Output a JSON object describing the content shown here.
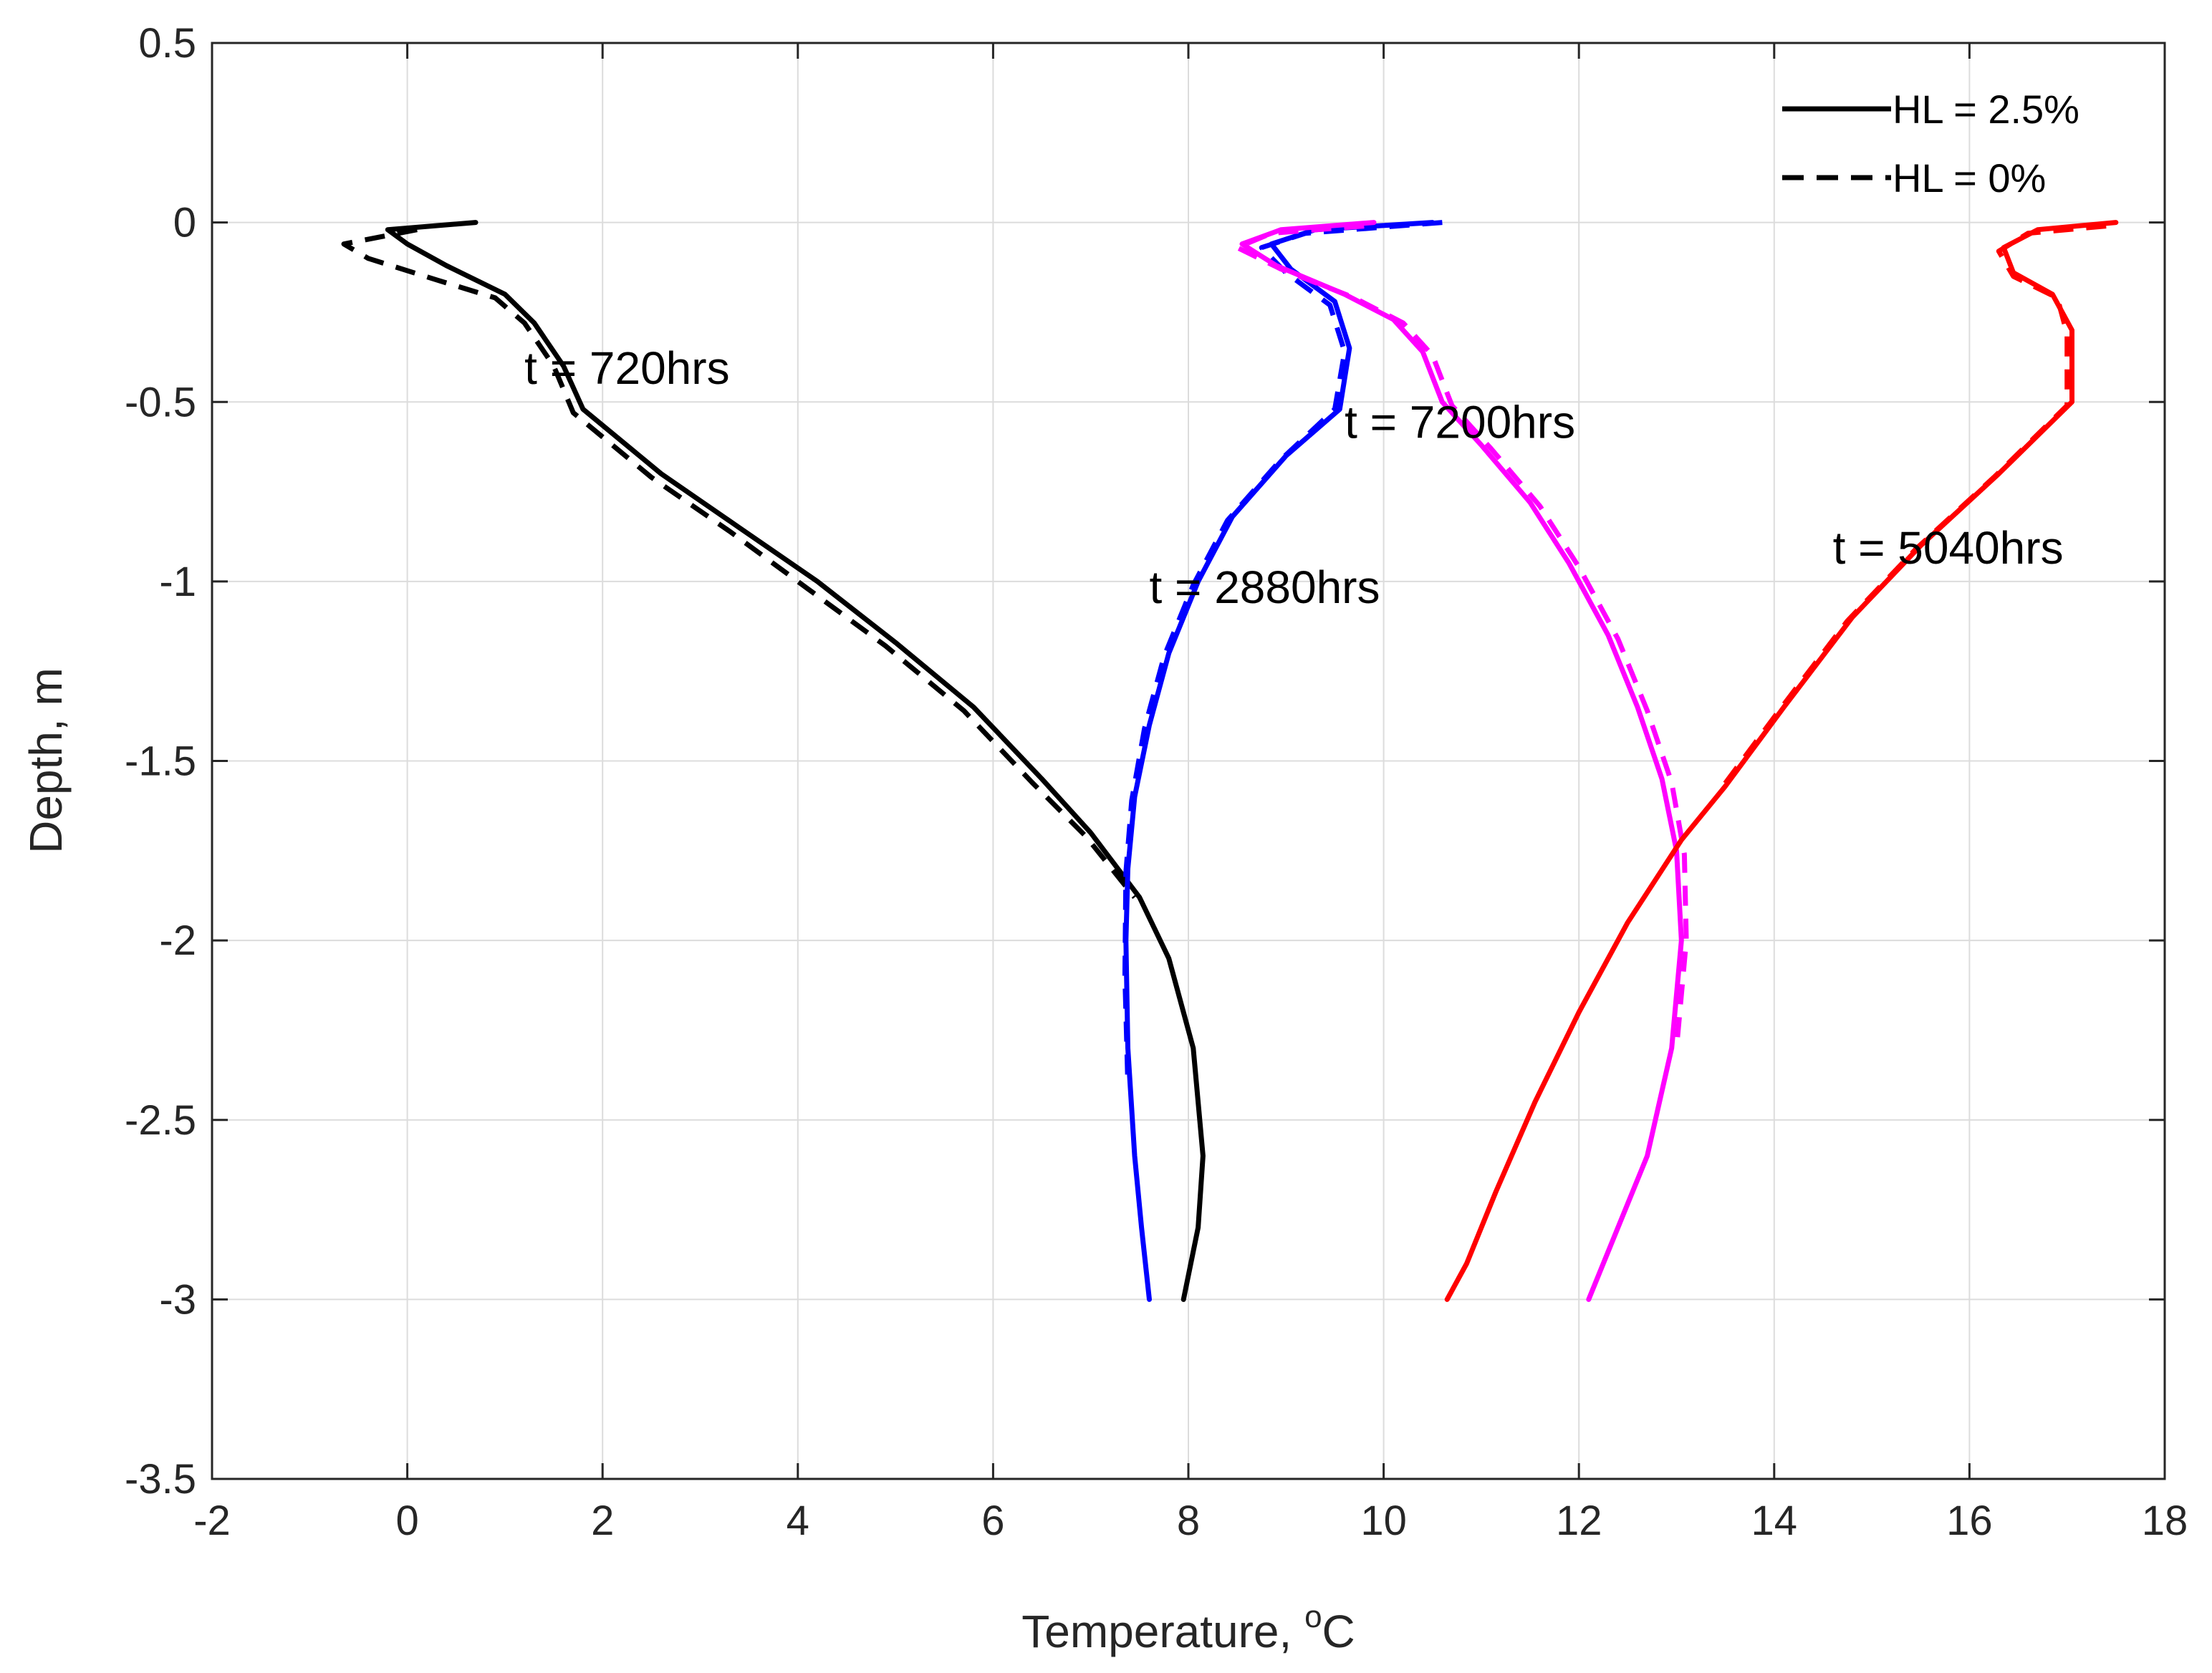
{
  "chart_data": {
    "type": "line",
    "xlabel": "Temperature, ",
    "xlabel_sup": "o",
    "xlabel_suffix": "C",
    "ylabel": "Depth, m",
    "xlim": [
      -2,
      18
    ],
    "ylim": [
      -3.5,
      0.5
    ],
    "grid": true,
    "xticks": [
      -2,
      0,
      2,
      4,
      6,
      8,
      10,
      12,
      14,
      16,
      18
    ],
    "yticks": [
      0.5,
      0,
      -0.5,
      -1,
      -1.5,
      -2,
      -2.5,
      -3,
      -3.5
    ],
    "legend": {
      "position": "top-right",
      "entries": [
        {
          "label": "HL = 2.5%",
          "style": "solid"
        },
        {
          "label": "HL = 0%",
          "style": "dashed"
        }
      ]
    },
    "annotations": [
      {
        "text": "t = 720hrs",
        "x": 1.2,
        "y": -0.45
      },
      {
        "text": "t = 2880hrs",
        "x": 7.6,
        "y": -1.06
      },
      {
        "text": "t = 7200hrs",
        "x": 9.6,
        "y": -0.6
      },
      {
        "text": "t = 5040hrs",
        "x": 14.6,
        "y": -0.95
      }
    ],
    "series": [
      {
        "name": "t = 720hrs, HL = 2.5%",
        "color": "#000000",
        "style": "solid",
        "points": [
          [
            0.7,
            0
          ],
          [
            -0.2,
            -0.02
          ],
          [
            0.0,
            -0.06
          ],
          [
            0.4,
            -0.12
          ],
          [
            1.0,
            -0.2
          ],
          [
            1.3,
            -0.28
          ],
          [
            1.6,
            -0.4
          ],
          [
            1.8,
            -0.52
          ],
          [
            2.6,
            -0.7
          ],
          [
            3.4,
            -0.85
          ],
          [
            4.2,
            -1.0
          ],
          [
            5.0,
            -1.17
          ],
          [
            5.8,
            -1.35
          ],
          [
            6.5,
            -1.55
          ],
          [
            7.0,
            -1.7
          ],
          [
            7.5,
            -1.88
          ],
          [
            7.8,
            -2.05
          ],
          [
            8.05,
            -2.3
          ],
          [
            8.15,
            -2.6
          ],
          [
            8.1,
            -2.8
          ],
          [
            7.95,
            -3.0
          ]
        ]
      },
      {
        "name": "t = 720hrs, HL = 0%",
        "color": "#000000",
        "style": "dashed",
        "points": [
          [
            0.1,
            -0.02
          ],
          [
            -0.65,
            -0.06
          ],
          [
            -0.4,
            -0.1
          ],
          [
            0.3,
            -0.16
          ],
          [
            0.9,
            -0.21
          ],
          [
            1.2,
            -0.28
          ],
          [
            1.5,
            -0.4
          ],
          [
            1.7,
            -0.53
          ],
          [
            2.5,
            -0.71
          ],
          [
            3.3,
            -0.86
          ],
          [
            4.1,
            -1.02
          ],
          [
            4.9,
            -1.18
          ],
          [
            5.7,
            -1.36
          ],
          [
            6.4,
            -1.56
          ],
          [
            6.95,
            -1.71
          ],
          [
            7.45,
            -1.88
          ]
        ]
      },
      {
        "name": "t = 2880hrs, HL = 2.5%",
        "color": "#0000ff",
        "style": "solid",
        "points": [
          [
            10.5,
            0
          ],
          [
            9.3,
            -0.02
          ],
          [
            8.85,
            -0.06
          ],
          [
            9.05,
            -0.13
          ],
          [
            9.5,
            -0.22
          ],
          [
            9.65,
            -0.35
          ],
          [
            9.55,
            -0.52
          ],
          [
            9.0,
            -0.65
          ],
          [
            8.45,
            -0.82
          ],
          [
            8.1,
            -1.0
          ],
          [
            7.8,
            -1.2
          ],
          [
            7.6,
            -1.4
          ],
          [
            7.45,
            -1.6
          ],
          [
            7.38,
            -1.8
          ],
          [
            7.36,
            -2.0
          ],
          [
            7.38,
            -2.3
          ],
          [
            7.45,
            -2.6
          ],
          [
            7.52,
            -2.8
          ],
          [
            7.6,
            -3.0
          ]
        ]
      },
      {
        "name": "t = 2880hrs, HL = 0%",
        "color": "#0000ff",
        "style": "dashed",
        "points": [
          [
            10.6,
            0
          ],
          [
            9.2,
            -0.03
          ],
          [
            8.75,
            -0.07
          ],
          [
            9.0,
            -0.14
          ],
          [
            9.45,
            -0.23
          ],
          [
            9.6,
            -0.36
          ],
          [
            9.5,
            -0.52
          ],
          [
            8.95,
            -0.66
          ],
          [
            8.4,
            -0.83
          ],
          [
            8.05,
            -1.01
          ],
          [
            7.75,
            -1.21
          ],
          [
            7.55,
            -1.41
          ],
          [
            7.42,
            -1.61
          ],
          [
            7.36,
            -1.81
          ],
          [
            7.35,
            -2.1
          ],
          [
            7.38,
            -2.4
          ]
        ]
      },
      {
        "name": "t = 7200hrs, HL = 2.5%",
        "color": "#ff00ff",
        "style": "solid",
        "points": [
          [
            9.9,
            0
          ],
          [
            8.95,
            -0.02
          ],
          [
            8.55,
            -0.06
          ],
          [
            8.9,
            -0.12
          ],
          [
            9.6,
            -0.2
          ],
          [
            10.1,
            -0.27
          ],
          [
            10.4,
            -0.36
          ],
          [
            10.6,
            -0.5
          ],
          [
            11.0,
            -0.62
          ],
          [
            11.5,
            -0.78
          ],
          [
            11.9,
            -0.95
          ],
          [
            12.3,
            -1.15
          ],
          [
            12.6,
            -1.35
          ],
          [
            12.85,
            -1.55
          ],
          [
            13.0,
            -1.75
          ],
          [
            13.05,
            -2.0
          ],
          [
            12.95,
            -2.3
          ],
          [
            12.7,
            -2.6
          ],
          [
            12.4,
            -2.8
          ],
          [
            12.1,
            -3.0
          ]
        ]
      },
      {
        "name": "t = 7200hrs, HL = 0%",
        "color": "#ff00ff",
        "style": "dashed",
        "points": [
          [
            9.8,
            -0.01
          ],
          [
            8.85,
            -0.03
          ],
          [
            8.5,
            -0.07
          ],
          [
            8.95,
            -0.13
          ],
          [
            9.7,
            -0.21
          ],
          [
            10.2,
            -0.28
          ],
          [
            10.5,
            -0.37
          ],
          [
            10.7,
            -0.51
          ],
          [
            11.1,
            -0.63
          ],
          [
            11.6,
            -0.79
          ],
          [
            12.0,
            -0.96
          ],
          [
            12.4,
            -1.16
          ],
          [
            12.7,
            -1.36
          ],
          [
            12.95,
            -1.56
          ],
          [
            13.08,
            -1.76
          ],
          [
            13.1,
            -2.0
          ],
          [
            13.0,
            -2.3
          ]
        ]
      },
      {
        "name": "t = 5040hrs, HL = 2.5%",
        "color": "#ff0000",
        "style": "solid",
        "points": [
          [
            17.5,
            0
          ],
          [
            16.7,
            -0.02
          ],
          [
            16.35,
            -0.07
          ],
          [
            16.45,
            -0.14
          ],
          [
            16.85,
            -0.2
          ],
          [
            17.05,
            -0.3
          ],
          [
            17.05,
            -0.5
          ],
          [
            16.3,
            -0.7
          ],
          [
            15.5,
            -0.9
          ],
          [
            14.8,
            -1.1
          ],
          [
            14.1,
            -1.35
          ],
          [
            13.5,
            -1.57
          ],
          [
            13.05,
            -1.72
          ],
          [
            12.5,
            -1.95
          ],
          [
            12.0,
            -2.2
          ],
          [
            11.55,
            -2.45
          ],
          [
            11.15,
            -2.7
          ],
          [
            10.85,
            -2.9
          ],
          [
            10.65,
            -3.0
          ]
        ]
      },
      {
        "name": "t = 5040hrs, HL = 0%",
        "color": "#ff0000",
        "style": "dashed",
        "points": [
          [
            17.4,
            -0.01
          ],
          [
            16.6,
            -0.03
          ],
          [
            16.3,
            -0.08
          ],
          [
            16.45,
            -0.15
          ],
          [
            16.9,
            -0.21
          ],
          [
            17.0,
            -0.31
          ],
          [
            17.0,
            -0.51
          ],
          [
            16.25,
            -0.71
          ],
          [
            15.45,
            -0.91
          ],
          [
            14.75,
            -1.11
          ],
          [
            14.05,
            -1.36
          ],
          [
            13.45,
            -1.58
          ]
        ]
      }
    ]
  }
}
